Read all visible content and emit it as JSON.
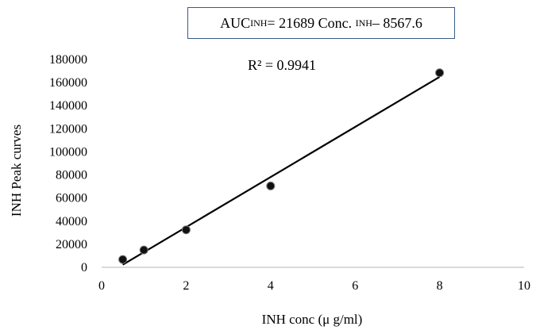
{
  "equation": {
    "lhs_main": "AUC",
    "lhs_sub": "INH",
    "middle": " = 21689 Conc.",
    "conc_sub": "INH",
    "tail": " – 8567.6"
  },
  "r_squared": "R² = 0.9941",
  "chart_data": {
    "type": "scatter",
    "xlabel": "INH conc (μ g/ml)",
    "ylabel": "INH Peak curves",
    "xlim": [
      0,
      10
    ],
    "ylim": [
      0,
      180000
    ],
    "x_ticks": [
      0,
      2,
      4,
      6,
      8,
      10
    ],
    "y_ticks": [
      0,
      20000,
      40000,
      60000,
      80000,
      100000,
      120000,
      140000,
      160000,
      180000
    ],
    "grid": false,
    "series": [
      {
        "x": [
          0.5,
          1,
          2,
          4,
          8
        ],
        "y": [
          6800,
          15000,
          32500,
          70500,
          168500
        ]
      }
    ],
    "trendline": {
      "slope": 21689,
      "intercept": -8567.6,
      "x_range": [
        0.5,
        8
      ]
    },
    "colors": {
      "points": "#111111",
      "trendline": "#000000",
      "box_border": "#3a5a8c"
    }
  }
}
